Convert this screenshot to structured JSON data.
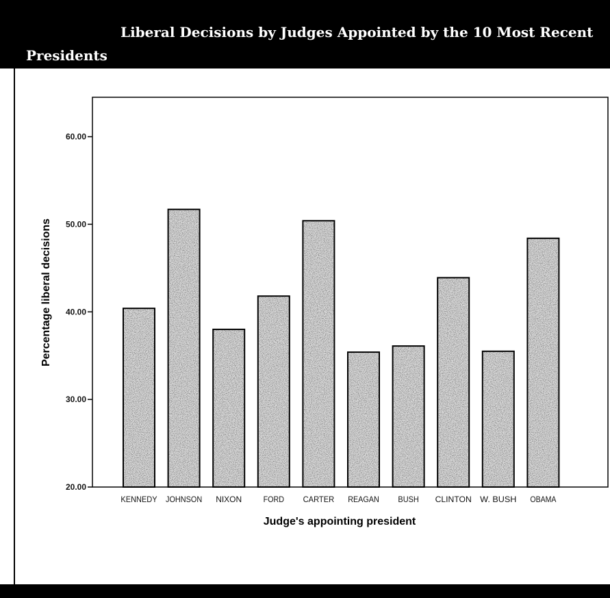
{
  "header": {
    "title": "Liberal Decisions by Judges Appointed by the 10 Most Recent Presidents"
  },
  "colors": {
    "header_bg": "#000000",
    "bar_fill": "#d9d9d9",
    "bar_stroke": "#000000"
  },
  "chart_data": {
    "type": "bar",
    "title": "Liberal Decisions by Judges Appointed by the 10 Most Recent Presidents",
    "xlabel": "Judge's appointing president",
    "ylabel": "Percentage liberal decisions",
    "categories": [
      "KENNEDY",
      "JOHNSON",
      "NIXON",
      "FORD",
      "CARTER",
      "REAGAN",
      "BUSH",
      "CLINTON",
      "W. BUSH",
      "OBAMA"
    ],
    "values": [
      40.4,
      51.7,
      38.0,
      41.8,
      50.4,
      35.4,
      36.1,
      43.9,
      35.5,
      48.4
    ],
    "ylim": [
      20,
      64.5
    ],
    "yticks": [
      "20.00",
      "30.00",
      "40.00",
      "50.00",
      "60.00"
    ],
    "grid": false,
    "legend": "none"
  }
}
